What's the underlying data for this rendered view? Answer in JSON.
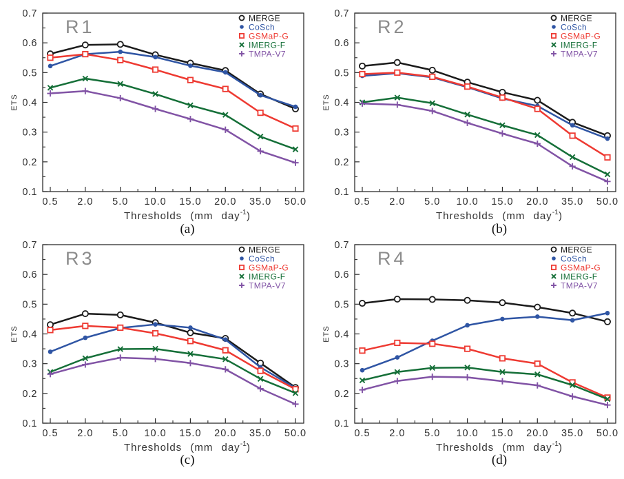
{
  "figure": {
    "ylabel": "ETS",
    "xlabel_prefix": "Thresholds (mm day",
    "xlabel_sup": "-1",
    "xlabel_suffix": ")",
    "ylim_min": 0.1,
    "ylim_max": 0.7,
    "ytick_labels": [
      "0.1",
      "0.2",
      "0.3",
      "0.4",
      "0.5",
      "0.6",
      "0.7"
    ],
    "categories": [
      "0.5",
      "2.0",
      "5.0",
      "10.0",
      "15.0",
      "20.0",
      "35.0",
      "50.0"
    ],
    "legend": [
      {
        "name": "MERGE",
        "color": "#1b1b1b",
        "marker": "open-circle"
      },
      {
        "name": "CoSch",
        "color": "#2f55a4",
        "marker": "filled-circle"
      },
      {
        "name": "GSMaP-G",
        "color": "#ee3a32",
        "marker": "open-square"
      },
      {
        "name": "IMERG-F",
        "color": "#156f38",
        "marker": "x"
      },
      {
        "name": "TMPA-V7",
        "color": "#8153a5",
        "marker": "plus"
      }
    ],
    "frame_color": "#2e2e2e",
    "text_color": "#303030",
    "panel_label_color": "#8c8c8c"
  },
  "chart_data": [
    {
      "type": "line",
      "panel_label": "R1",
      "caption": "(a)",
      "xlabel": "Thresholds (mm day⁻¹)",
      "ylabel": "ETS",
      "ylim": [
        0.1,
        0.7
      ],
      "grid": false,
      "legend_position": "top-right",
      "categories": [
        "0.5",
        "2.0",
        "5.0",
        "10.0",
        "15.0",
        "20.0",
        "35.0",
        "50.0"
      ],
      "series": [
        {
          "name": "MERGE",
          "values": [
            0.563,
            0.593,
            0.595,
            0.56,
            0.532,
            0.507,
            0.428,
            0.378
          ]
        },
        {
          "name": "CoSch",
          "values": [
            0.522,
            0.562,
            0.57,
            0.552,
            0.523,
            0.501,
            0.424,
            0.385
          ]
        },
        {
          "name": "GSMaP-G",
          "values": [
            0.55,
            0.562,
            0.542,
            0.51,
            0.475,
            0.445,
            0.365,
            0.312
          ]
        },
        {
          "name": "IMERG-F",
          "values": [
            0.449,
            0.48,
            0.462,
            0.428,
            0.39,
            0.358,
            0.285,
            0.242
          ]
        },
        {
          "name": "TMPA-V7",
          "values": [
            0.43,
            0.438,
            0.414,
            0.378,
            0.344,
            0.308,
            0.236,
            0.197
          ]
        }
      ]
    },
    {
      "type": "line",
      "panel_label": "R2",
      "caption": "(b)",
      "xlabel": "Thresholds (mm day⁻¹)",
      "ylabel": "ETS",
      "ylim": [
        0.1,
        0.7
      ],
      "grid": false,
      "legend_position": "top-right",
      "categories": [
        "0.5",
        "2.0",
        "5.0",
        "10.0",
        "15.0",
        "20.0",
        "35.0",
        "50.0"
      ],
      "series": [
        {
          "name": "MERGE",
          "values": [
            0.522,
            0.534,
            0.508,
            0.468,
            0.434,
            0.407,
            0.333,
            0.288
          ]
        },
        {
          "name": "CoSch",
          "values": [
            0.489,
            0.498,
            0.484,
            0.451,
            0.413,
            0.388,
            0.323,
            0.278
          ]
        },
        {
          "name": "GSMaP-G",
          "values": [
            0.495,
            0.5,
            0.486,
            0.453,
            0.416,
            0.378,
            0.288,
            0.215
          ]
        },
        {
          "name": "IMERG-F",
          "values": [
            0.4,
            0.416,
            0.397,
            0.359,
            0.323,
            0.29,
            0.216,
            0.158
          ]
        },
        {
          "name": "TMPA-V7",
          "values": [
            0.396,
            0.392,
            0.371,
            0.331,
            0.295,
            0.261,
            0.185,
            0.134
          ]
        }
      ]
    },
    {
      "type": "line",
      "panel_label": "R3",
      "caption": "(c)",
      "xlabel": "Thresholds (mm day⁻¹)",
      "ylabel": "ETS",
      "ylim": [
        0.1,
        0.7
      ],
      "grid": false,
      "legend_position": "top-right",
      "categories": [
        "0.5",
        "2.0",
        "5.0",
        "10.0",
        "15.0",
        "20.0",
        "35.0",
        "50.0"
      ],
      "series": [
        {
          "name": "MERGE",
          "values": [
            0.431,
            0.468,
            0.464,
            0.438,
            0.404,
            0.385,
            0.302,
            0.22
          ]
        },
        {
          "name": "CoSch",
          "values": [
            0.34,
            0.387,
            0.42,
            0.432,
            0.421,
            0.381,
            0.288,
            0.218
          ]
        },
        {
          "name": "GSMaP-G",
          "values": [
            0.413,
            0.427,
            0.421,
            0.402,
            0.376,
            0.345,
            0.276,
            0.214
          ]
        },
        {
          "name": "IMERG-F",
          "values": [
            0.272,
            0.318,
            0.349,
            0.35,
            0.333,
            0.315,
            0.249,
            0.201
          ]
        },
        {
          "name": "TMPA-V7",
          "values": [
            0.265,
            0.297,
            0.32,
            0.316,
            0.302,
            0.281,
            0.216,
            0.164
          ]
        }
      ]
    },
    {
      "type": "line",
      "panel_label": "R4",
      "caption": "(d)",
      "xlabel": "Thresholds (mm day⁻¹)",
      "ylabel": "ETS",
      "ylim": [
        0.1,
        0.7
      ],
      "grid": false,
      "legend_position": "top-right",
      "categories": [
        "0.5",
        "2.0",
        "5.0",
        "10.0",
        "15.0",
        "20.0",
        "35.0",
        "50.0"
      ],
      "series": [
        {
          "name": "MERGE",
          "values": [
            0.503,
            0.517,
            0.516,
            0.513,
            0.505,
            0.49,
            0.47,
            0.441
          ]
        },
        {
          "name": "CoSch",
          "values": [
            0.278,
            0.321,
            0.377,
            0.429,
            0.45,
            0.458,
            0.446,
            0.47
          ]
        },
        {
          "name": "GSMaP-G",
          "values": [
            0.344,
            0.37,
            0.367,
            0.35,
            0.318,
            0.3,
            0.237,
            0.186
          ]
        },
        {
          "name": "IMERG-F",
          "values": [
            0.244,
            0.272,
            0.286,
            0.287,
            0.272,
            0.264,
            0.228,
            0.181
          ]
        },
        {
          "name": "TMPA-V7",
          "values": [
            0.212,
            0.242,
            0.256,
            0.254,
            0.241,
            0.227,
            0.19,
            0.161
          ]
        }
      ]
    }
  ]
}
